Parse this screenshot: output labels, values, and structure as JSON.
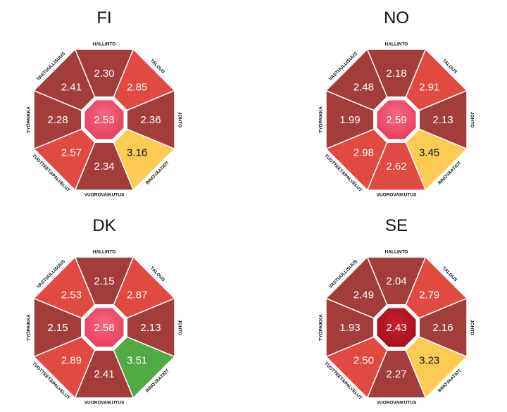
{
  "colors": {
    "dark": "#a33d3a",
    "red": "#e04a43",
    "yellow": "#fdcb54",
    "green": "#52aa46",
    "center_pink": "#e8415f",
    "center_dark": "#a8101e"
  },
  "categories": [
    "HALLINTO",
    "TALOUS",
    "JOHTO",
    "INNOVAATIOT",
    "VUOROVAIKUTUS",
    "TUOTTEET&PALVELUT",
    "TYÖPAIKKA",
    "VASTUULLISUUS"
  ],
  "panels": [
    {
      "title": "FI",
      "center": {
        "value": "2.53",
        "color": "center_pink"
      },
      "segments": [
        {
          "value": "2.30",
          "color": "dark"
        },
        {
          "value": "2.85",
          "color": "red"
        },
        {
          "value": "2.36",
          "color": "dark"
        },
        {
          "value": "3.16",
          "color": "yellow"
        },
        {
          "value": "2.34",
          "color": "dark"
        },
        {
          "value": "2.57",
          "color": "red"
        },
        {
          "value": "2.28",
          "color": "dark"
        },
        {
          "value": "2.41",
          "color": "dark"
        }
      ]
    },
    {
      "title": "NO",
      "center": {
        "value": "2.59",
        "color": "center_pink"
      },
      "segments": [
        {
          "value": "2.18",
          "color": "dark"
        },
        {
          "value": "2.91",
          "color": "red"
        },
        {
          "value": "2.13",
          "color": "dark"
        },
        {
          "value": "3.45",
          "color": "yellow"
        },
        {
          "value": "2.62",
          "color": "red"
        },
        {
          "value": "2.98",
          "color": "red"
        },
        {
          "value": "1.99",
          "color": "dark"
        },
        {
          "value": "2.48",
          "color": "dark"
        }
      ]
    },
    {
      "title": "DK",
      "center": {
        "value": "2.58",
        "color": "center_pink"
      },
      "segments": [
        {
          "value": "2.15",
          "color": "dark"
        },
        {
          "value": "2.87",
          "color": "red"
        },
        {
          "value": "2.13",
          "color": "dark"
        },
        {
          "value": "3.51",
          "color": "green"
        },
        {
          "value": "2.41",
          "color": "dark"
        },
        {
          "value": "2.89",
          "color": "red"
        },
        {
          "value": "2.15",
          "color": "dark"
        },
        {
          "value": "2.53",
          "color": "red"
        }
      ]
    },
    {
      "title": "SE",
      "center": {
        "value": "2.43",
        "color": "center_dark"
      },
      "segments": [
        {
          "value": "2.04",
          "color": "dark"
        },
        {
          "value": "2.79",
          "color": "red"
        },
        {
          "value": "2.16",
          "color": "dark"
        },
        {
          "value": "3.23",
          "color": "yellow"
        },
        {
          "value": "2.27",
          "color": "dark"
        },
        {
          "value": "2.50",
          "color": "red"
        },
        {
          "value": "1.93",
          "color": "dark"
        },
        {
          "value": "2.49",
          "color": "dark"
        }
      ]
    }
  ]
}
